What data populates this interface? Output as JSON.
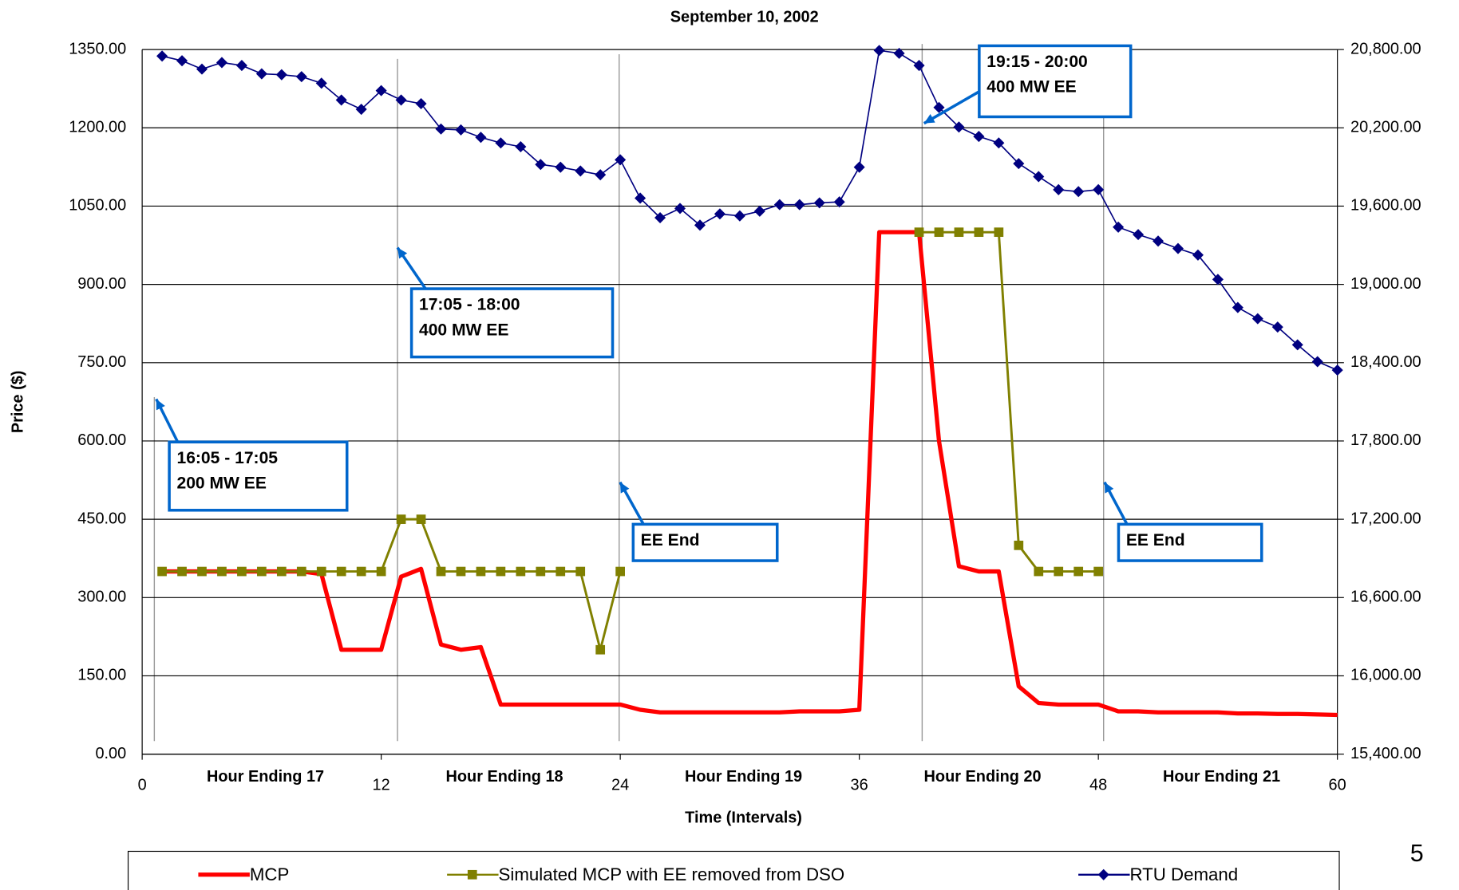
{
  "chart_data": {
    "type": "line",
    "title": "September 10, 2002",
    "x_label": "Time (Intervals)",
    "y_label": "Price ($)",
    "x": [
      1,
      2,
      3,
      4,
      5,
      6,
      7,
      8,
      9,
      10,
      11,
      12,
      13,
      14,
      15,
      16,
      17,
      18,
      19,
      20,
      21,
      22,
      23,
      24,
      25,
      26,
      27,
      28,
      29,
      30,
      31,
      32,
      33,
      34,
      35,
      36,
      37,
      38,
      39,
      40,
      41,
      42,
      43,
      44,
      45,
      46,
      47,
      48,
      49,
      50,
      51,
      52,
      53,
      54,
      55,
      56,
      57,
      58,
      59,
      60
    ],
    "xlim": [
      0,
      60
    ],
    "xticks": [
      0,
      12,
      24,
      36,
      48,
      60
    ],
    "x_group_labels": [
      "Hour Ending 17",
      "Hour Ending 18",
      "Hour Ending 19",
      "Hour Ending 20",
      "Hour Ending 21"
    ],
    "ylim": [
      0,
      1350
    ],
    "yticks": [
      {
        "value": 0,
        "label": "0.00"
      },
      {
        "value": 150,
        "label": "150.00"
      },
      {
        "value": 300,
        "label": "300.00"
      },
      {
        "value": 450,
        "label": "450.00"
      },
      {
        "value": 600,
        "label": "600.00"
      },
      {
        "value": 750,
        "label": "750.00"
      },
      {
        "value": 900,
        "label": "900.00"
      },
      {
        "value": 1050,
        "label": "1050.00"
      },
      {
        "value": 1200,
        "label": "1200.00"
      },
      {
        "value": 1350,
        "label": "1350.00"
      }
    ],
    "y2lim": [
      15400,
      20800
    ],
    "y2ticks": [
      {
        "value": 15400,
        "label": "15,400.00"
      },
      {
        "value": 16000,
        "label": "16,000.00"
      },
      {
        "value": 16600,
        "label": "16,600.00"
      },
      {
        "value": 17200,
        "label": "17,200.00"
      },
      {
        "value": 17800,
        "label": "17,800.00"
      },
      {
        "value": 18400,
        "label": "18,400.00"
      },
      {
        "value": 19000,
        "label": "19,000.00"
      },
      {
        "value": 19600,
        "label": "19,600.00"
      },
      {
        "value": 20200,
        "label": "20,200.00"
      },
      {
        "value": 20800,
        "label": "20,800.00"
      }
    ],
    "grid": true,
    "series": [
      {
        "name": "MCP",
        "color": "#ff0000",
        "marker": "none",
        "values": [
          350,
          350,
          350,
          350,
          350,
          350,
          350,
          350,
          345,
          200,
          200,
          200,
          340,
          355,
          210,
          200,
          205,
          95,
          95,
          95,
          95,
          95,
          95,
          95,
          85,
          80,
          80,
          80,
          80,
          80,
          80,
          80,
          82,
          82,
          82,
          85,
          1000,
          1000,
          1000,
          600,
          360,
          350,
          350,
          130,
          98,
          95,
          95,
          95,
          82,
          82,
          80,
          80,
          80,
          80,
          78,
          78,
          77,
          77,
          76,
          75
        ]
      },
      {
        "name": "Simulated MCP with EE removed from DSO",
        "color": "#808000",
        "marker": "square",
        "values": [
          350,
          350,
          350,
          350,
          350,
          350,
          350,
          350,
          350,
          350,
          350,
          350,
          450,
          450,
          350,
          350,
          350,
          350,
          350,
          350,
          350,
          350,
          200,
          350,
          null,
          null,
          null,
          null,
          null,
          null,
          null,
          null,
          null,
          null,
          null,
          null,
          null,
          null,
          1000,
          1000,
          1000,
          1000,
          1000,
          400,
          350,
          350,
          350,
          350,
          null,
          null,
          null,
          null,
          null,
          null,
          null,
          null,
          null,
          null,
          null,
          null
        ]
      },
      {
        "name": "RTU Demand",
        "color": "#000080",
        "marker": "diamond",
        "axis": "y2",
        "values": [
          20750,
          20714,
          20650,
          20700,
          20678,
          20614,
          20607,
          20592,
          20542,
          20413,
          20342,
          20485,
          20413,
          20385,
          20191,
          20184,
          20127,
          20084,
          20055,
          19919,
          19898,
          19869,
          19840,
          19955,
          19661,
          19511,
          19582,
          19454,
          19540,
          19525,
          19561,
          19611,
          19611,
          19625,
          19632,
          19898,
          20793,
          20771,
          20678,
          20356,
          20206,
          20134,
          20084,
          19926,
          19826,
          19726,
          19711,
          19726,
          19439,
          19382,
          19332,
          19275,
          19225,
          19038,
          18823,
          18737,
          18673,
          18537,
          18408,
          18343
        ]
      }
    ],
    "annotations": [
      {
        "lines": [
          "16:05 - 17:05",
          "200 MW EE"
        ]
      },
      {
        "lines": [
          "17:05 - 18:00",
          "400 MW EE"
        ]
      },
      {
        "lines": [
          "EE End"
        ]
      },
      {
        "lines": [
          "19:15 - 20:00",
          "400 MW EE"
        ]
      },
      {
        "lines": [
          "EE End"
        ]
      }
    ],
    "page_number": "5"
  }
}
